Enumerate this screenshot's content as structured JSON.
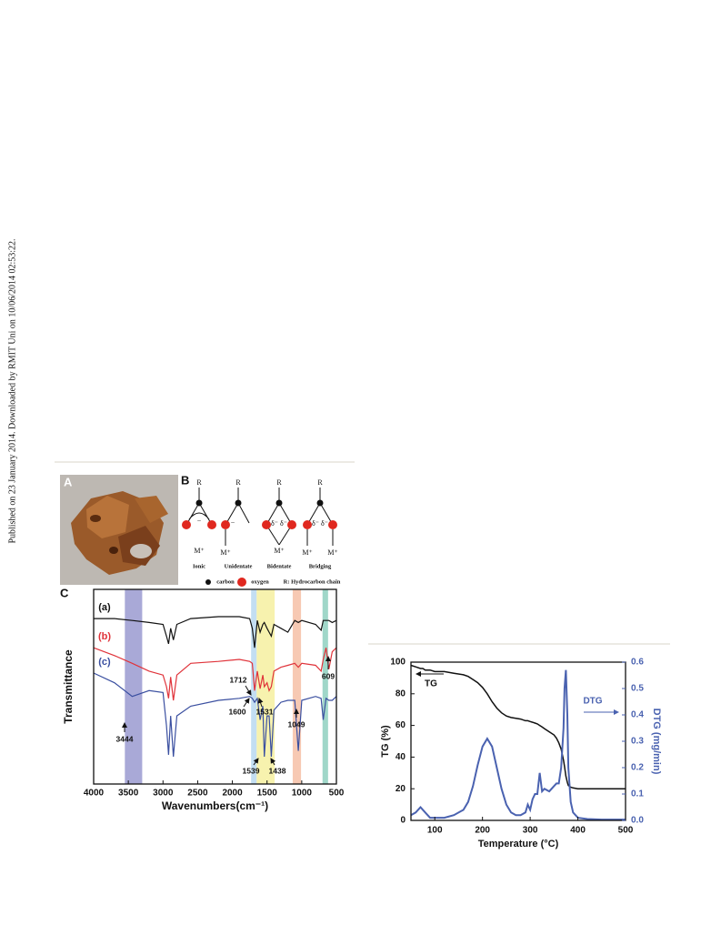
{
  "side_note": "Published on 23 January 2014. Downloaded by RMIT Uni on 10/06/2014 02:53:22.",
  "figure_a": {
    "label": "A"
  },
  "figure_b": {
    "label": "B",
    "r": "R",
    "metal": "M⁺",
    "delta": "δ⁻",
    "charge": "−",
    "structures": [
      {
        "name": "Ionic"
      },
      {
        "name": "Unidentate"
      },
      {
        "name": "Bidentate"
      },
      {
        "name": "Bridging"
      }
    ],
    "legend": {
      "carbon": "carbon",
      "oxygen": "oxygen",
      "chain": "R: Hydrocarbon chain"
    }
  },
  "chart_data": [
    {
      "type": "line",
      "panel": "C",
      "xlabel": "Wavenumbers(cm⁻¹)",
      "ylabel": "Transmittance",
      "xlim": [
        4000,
        500
      ],
      "xticks": [
        4000,
        3500,
        3000,
        2500,
        2000,
        1500,
        1000,
        500
      ],
      "ylim": [
        0,
        100
      ],
      "x": [
        4000,
        3700,
        3444,
        3200,
        3000,
        2950,
        2920,
        2890,
        2850,
        2800,
        2600,
        2200,
        1900,
        1750,
        1712,
        1680,
        1640,
        1600,
        1560,
        1539,
        1500,
        1470,
        1438,
        1400,
        1300,
        1200,
        1100,
        1049,
        1000,
        800,
        720,
        690,
        650,
        609,
        560,
        500
      ],
      "series": [
        {
          "name": "(a)",
          "color": "#111111",
          "values": [
            85,
            85,
            84,
            83,
            82,
            76,
            72,
            80,
            74,
            82,
            85,
            86,
            86,
            85,
            80,
            70,
            84,
            78,
            82,
            83,
            80,
            78,
            76,
            82,
            80,
            78,
            84,
            83,
            84,
            82,
            79,
            84,
            84,
            84,
            83,
            84
          ]
        },
        {
          "name": "(b)",
          "color": "#e0333a",
          "values": [
            70,
            66,
            62,
            58,
            56,
            50,
            44,
            55,
            43,
            56,
            62,
            63,
            64,
            63,
            62,
            48,
            58,
            49,
            56,
            50,
            52,
            48,
            50,
            58,
            60,
            61,
            62,
            60,
            62,
            61,
            58,
            64,
            70,
            59,
            68,
            70
          ]
        },
        {
          "name": "(c)",
          "color": "#3a4fa0",
          "values": [
            57,
            52,
            45,
            48,
            47,
            30,
            15,
            35,
            14,
            35,
            40,
            43,
            44,
            45,
            44,
            42,
            44,
            33,
            40,
            14,
            35,
            35,
            14,
            38,
            42,
            43,
            43,
            17,
            43,
            45,
            44,
            33,
            44,
            43,
            43,
            45
          ]
        }
      ],
      "bands": [
        {
          "from": 3550,
          "to": 3300,
          "color": "#9a9ad0"
        },
        {
          "from": 1730,
          "to": 1650,
          "color": "#b8d8f0"
        },
        {
          "from": 1650,
          "to": 1390,
          "color": "#f6f0a0"
        },
        {
          "from": 1130,
          "to": 1010,
          "color": "#f6bfa6"
        },
        {
          "from": 700,
          "to": 620,
          "color": "#8fd0c0"
        }
      ],
      "peaks": [
        3444,
        1712,
        1600,
        1531,
        1539,
        1438,
        1049,
        609
      ]
    },
    {
      "type": "line",
      "xlabel": "Temperature (°C)",
      "ylabel": "TG (%)",
      "y2label": "DTG (mg/min)",
      "xlim": [
        50,
        500
      ],
      "xticks": [
        100,
        200,
        300,
        400,
        500
      ],
      "ylim": [
        0,
        100
      ],
      "yticks": [
        0,
        20,
        40,
        60,
        80,
        100
      ],
      "y2lim": [
        0,
        0.6
      ],
      "y2ticks": [
        {
          "value": 0,
          "label": "0.0"
        },
        0.1,
        0.2,
        0.3,
        0.4,
        0.5,
        0.6
      ],
      "annotations": [
        "TG",
        "DTG"
      ],
      "x": [
        50,
        60,
        70,
        75,
        80,
        90,
        100,
        120,
        140,
        160,
        170,
        180,
        190,
        200,
        210,
        220,
        230,
        240,
        250,
        260,
        270,
        280,
        290,
        295,
        300,
        305,
        310,
        315,
        320,
        325,
        330,
        340,
        350,
        355,
        360,
        365,
        370,
        372,
        375,
        378,
        380,
        385,
        390,
        400,
        420,
        450,
        500
      ],
      "series": [
        {
          "name": "TG",
          "color": "#111111",
          "values": [
            98,
            97,
            96,
            96,
            95,
            95,
            94,
            94,
            93,
            92,
            91,
            89,
            87,
            84,
            80,
            75,
            71,
            68,
            66,
            65,
            64.5,
            64,
            63,
            63,
            62.5,
            62,
            61.5,
            61,
            60,
            59,
            58,
            56,
            54,
            52,
            49,
            45,
            38,
            34,
            28,
            24,
            22,
            21,
            20.5,
            20,
            20,
            20,
            20
          ]
        },
        {
          "name": "DTG",
          "color": "#4a62b0",
          "axis": "y2",
          "values": [
            0.02,
            0.03,
            0.05,
            0.04,
            0.03,
            0.01,
            0.01,
            0.01,
            0.02,
            0.04,
            0.07,
            0.13,
            0.21,
            0.28,
            0.31,
            0.28,
            0.2,
            0.12,
            0.06,
            0.03,
            0.02,
            0.02,
            0.03,
            0.06,
            0.04,
            0.08,
            0.1,
            0.1,
            0.18,
            0.11,
            0.12,
            0.11,
            0.13,
            0.14,
            0.14,
            0.2,
            0.35,
            0.5,
            0.57,
            0.4,
            0.2,
            0.07,
            0.03,
            0.01,
            0.005,
            0.003,
            0.003
          ]
        }
      ]
    }
  ]
}
